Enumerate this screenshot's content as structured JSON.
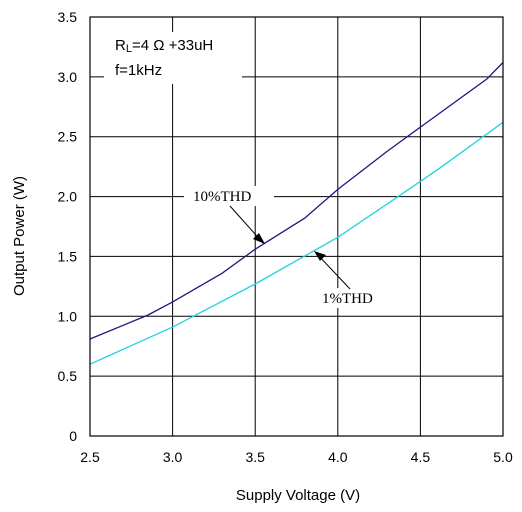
{
  "chart_data": {
    "type": "line",
    "xlabel": "Supply Voltage (V)",
    "ylabel": "Output Power (W)",
    "xlim": [
      2.5,
      5.0
    ],
    "ylim": [
      0,
      3.5
    ],
    "x_ticks": [
      "2.5",
      "3.0",
      "3.5",
      "4.0",
      "4.5",
      "5.0"
    ],
    "y_ticks": [
      "0",
      "0.5",
      "1.0",
      "1.5",
      "2.0",
      "2.5",
      "3.0",
      "3.5"
    ],
    "grid": true,
    "conditions": {
      "load_prefix": "R",
      "load_subscript": "L",
      "load_value": "=4 Ω +33uH",
      "frequency": "f=1kHz"
    },
    "series": [
      {
        "name": "10%THD",
        "color": "#1a1a80",
        "x": [
          2.5,
          2.85,
          3.0,
          3.3,
          3.5,
          3.8,
          4.0,
          4.3,
          4.5,
          4.9,
          5.0
        ],
        "y": [
          0.81,
          1.01,
          1.12,
          1.36,
          1.56,
          1.82,
          2.06,
          2.38,
          2.58,
          2.98,
          3.12
        ]
      },
      {
        "name": "1%THD",
        "color": "#22d3e0",
        "x": [
          2.5,
          3.0,
          3.5,
          4.0,
          4.3,
          4.6,
          5.0
        ],
        "y": [
          0.6,
          0.91,
          1.27,
          1.66,
          1.94,
          2.22,
          2.62
        ]
      }
    ],
    "annotations": [
      {
        "series": "10%THD",
        "text": "10%THD",
        "point": [
          3.56,
          1.58
        ]
      },
      {
        "series": "1%THD",
        "text": "1%THD",
        "point": [
          3.84,
          1.55
        ]
      }
    ]
  }
}
